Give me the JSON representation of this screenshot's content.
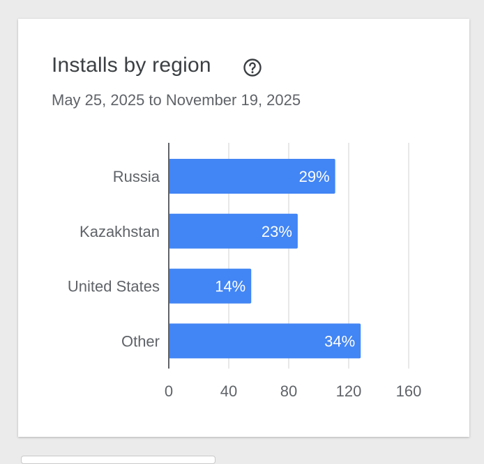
{
  "card": {
    "title": "Installs by region",
    "help_icon": "help-circle-icon",
    "date_range": "May 25, 2025 to November 19, 2025"
  },
  "chart_data": {
    "type": "bar",
    "orientation": "horizontal",
    "categories": [
      "Russia",
      "Kazakhstan",
      "United States",
      "Other"
    ],
    "values": [
      111,
      86,
      55,
      128
    ],
    "data_labels": [
      "29%",
      "23%",
      "14%",
      "34%"
    ],
    "xlim": [
      0,
      160
    ],
    "x_ticks": [
      "0",
      "40",
      "80",
      "120",
      "160"
    ],
    "grid": true,
    "bar_color": "#4285f4",
    "grid_color": "#e0e0e0"
  }
}
